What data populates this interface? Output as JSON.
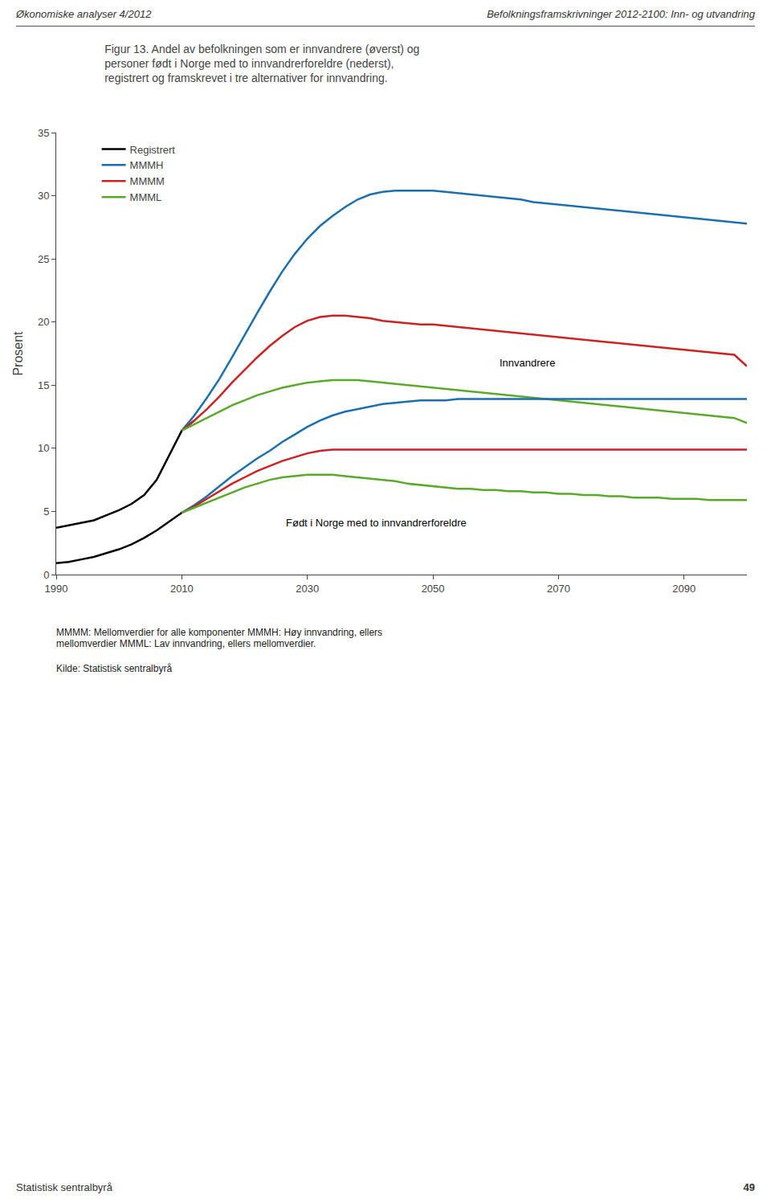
{
  "chart_data": {
    "type": "line",
    "title": "Figur 13. Andel av befolkningen som er innvandrere (øverst) og\npersoner født i Norge med to innvandrerforeldre (nederst),\nregistrert og framskrevet i tre alternativer for innvandring.",
    "header": [
      "Økonomiske analyser 4/2012",
      "Befolkningsframskrivninger 2012-2100: Inn- og utvandring"
    ],
    "footer": [
      "Statistisk sentralbyrå",
      "49"
    ],
    "footnote": "MMMM: Mellomverdier for alle komponenter MMMH: Høy innvandring, ellers\nmellomverdier MMML: Lav innvandring, ellers mellomverdier.",
    "source": "Kilde: Statistisk sentralbyrå",
    "y_label": "Prosent",
    "annotations": [
      "Innvandrere",
      "Født i Norge med to innvandrerforeldre"
    ],
    "x": [
      1990,
      1992,
      1994,
      1996,
      1998,
      2000,
      2002,
      2004,
      2006,
      2008,
      2010,
      2012,
      2014,
      2016,
      2018,
      2020,
      2022,
      2024,
      2026,
      2028,
      2030,
      2032,
      2034,
      2036,
      2038,
      2040,
      2042,
      2044,
      2046,
      2048,
      2050,
      2052,
      2054,
      2056,
      2058,
      2060,
      2062,
      2064,
      2066,
      2068,
      2070,
      2072,
      2074,
      2076,
      2078,
      2080,
      2082,
      2084,
      2086,
      2088,
      2090,
      2092,
      2094,
      2096,
      2098,
      2100
    ],
    "series": [
      {
        "name": "Registrert",
        "color": "#000000",
        "values": [
          3.7,
          3.9,
          4.1,
          4.3,
          4.7,
          5.1,
          5.6,
          6.3,
          7.5,
          9.5,
          11.4,
          12.2,
          null,
          null,
          null,
          null,
          null,
          null,
          null,
          null,
          null,
          null,
          null,
          null,
          null,
          null,
          null,
          null,
          null,
          null,
          null,
          null,
          null,
          null,
          null,
          null,
          null,
          null,
          null,
          null,
          null,
          null,
          null,
          null,
          null,
          null,
          null,
          null,
          null,
          null,
          null,
          null,
          null,
          null,
          null,
          null
        ]
      },
      {
        "name": "MMMH",
        "color": "#1a6faf",
        "values": [
          null,
          null,
          null,
          null,
          null,
          null,
          null,
          null,
          null,
          null,
          11.4,
          12.6,
          14.0,
          15.5,
          17.2,
          19.0,
          20.7,
          22.4,
          24.0,
          25.4,
          26.6,
          27.6,
          28.4,
          29.1,
          29.7,
          30.1,
          30.3,
          30.4,
          30.4,
          30.4,
          30.4,
          30.3,
          30.2,
          30.1,
          30.0,
          29.9,
          29.8,
          29.7,
          29.5,
          29.4,
          29.3,
          29.2,
          29.1,
          29.0,
          28.9,
          28.8,
          28.7,
          28.6,
          28.5,
          28.4,
          28.3,
          28.2,
          28.1,
          28.0,
          27.9,
          27.8
        ]
      },
      {
        "name": "MMMM",
        "color": "#cc2222",
        "values": [
          null,
          null,
          null,
          null,
          null,
          null,
          null,
          null,
          null,
          null,
          11.4,
          12.2,
          13.1,
          14.1,
          15.2,
          16.2,
          17.2,
          18.1,
          18.9,
          19.6,
          20.1,
          20.4,
          20.5,
          20.5,
          20.4,
          20.3,
          20.1,
          20.0,
          19.9,
          19.8,
          19.8,
          19.7,
          19.6,
          19.5,
          19.4,
          19.3,
          19.2,
          19.1,
          19.0,
          18.9,
          18.8,
          18.7,
          18.6,
          18.5,
          18.4,
          18.3,
          18.2,
          18.1,
          18.0,
          17.9,
          17.8,
          17.7,
          17.6,
          17.5,
          17.4,
          16.5
        ]
      },
      {
        "name": "MMML",
        "color": "#5aaa2a",
        "values": [
          null,
          null,
          null,
          null,
          null,
          null,
          null,
          null,
          null,
          null,
          11.4,
          11.9,
          12.4,
          12.9,
          13.4,
          13.8,
          14.2,
          14.5,
          14.8,
          15.0,
          15.2,
          15.3,
          15.4,
          15.4,
          15.4,
          15.3,
          15.2,
          15.1,
          15.0,
          14.9,
          14.8,
          14.7,
          14.6,
          14.5,
          14.4,
          14.3,
          14.2,
          14.1,
          14.0,
          13.9,
          13.8,
          13.7,
          13.6,
          13.5,
          13.4,
          13.3,
          13.2,
          13.1,
          13.0,
          12.9,
          12.8,
          12.7,
          12.6,
          12.5,
          12.4,
          12.0
        ]
      },
      {
        "name": "Registrert",
        "color": "#000000",
        "values": [
          0.9,
          1.0,
          1.2,
          1.4,
          1.7,
          2.0,
          2.4,
          2.9,
          3.5,
          4.2,
          4.9,
          5.4,
          null,
          null,
          null,
          null,
          null,
          null,
          null,
          null,
          null,
          null,
          null,
          null,
          null,
          null,
          null,
          null,
          null,
          null,
          null,
          null,
          null,
          null,
          null,
          null,
          null,
          null,
          null,
          null,
          null,
          null,
          null,
          null,
          null,
          null,
          null,
          null,
          null,
          null,
          null,
          null,
          null,
          null,
          null,
          null
        ]
      },
      {
        "name": "MMMH",
        "color": "#1a6faf",
        "values": [
          null,
          null,
          null,
          null,
          null,
          null,
          null,
          null,
          null,
          null,
          4.9,
          5.5,
          6.2,
          7.0,
          7.8,
          8.5,
          9.2,
          9.8,
          10.5,
          11.1,
          11.7,
          12.2,
          12.6,
          12.9,
          13.1,
          13.3,
          13.5,
          13.6,
          13.7,
          13.8,
          13.8,
          13.8,
          13.9,
          13.9,
          13.9,
          13.9,
          13.9,
          13.9,
          13.9,
          13.9,
          13.9,
          13.9,
          13.9,
          13.9,
          13.9,
          13.9,
          13.9,
          13.9,
          13.9,
          13.9,
          13.9,
          13.9,
          13.9,
          13.9,
          13.9,
          13.9
        ]
      },
      {
        "name": "MMMM",
        "color": "#cc2222",
        "values": [
          null,
          null,
          null,
          null,
          null,
          null,
          null,
          null,
          null,
          null,
          4.9,
          5.4,
          6.0,
          6.6,
          7.2,
          7.7,
          8.2,
          8.6,
          9.0,
          9.3,
          9.6,
          9.8,
          9.9,
          9.9,
          9.9,
          9.9,
          9.9,
          9.9,
          9.9,
          9.9,
          9.9,
          9.9,
          9.9,
          9.9,
          9.9,
          9.9,
          9.9,
          9.9,
          9.9,
          9.9,
          9.9,
          9.9,
          9.9,
          9.9,
          9.9,
          9.9,
          9.9,
          9.9,
          9.9,
          9.9,
          9.9,
          9.9,
          9.9,
          9.9,
          9.9,
          9.9
        ]
      },
      {
        "name": "MMML",
        "color": "#5aaa2a",
        "values": [
          null,
          null,
          null,
          null,
          null,
          null,
          null,
          null,
          null,
          null,
          4.9,
          5.3,
          5.7,
          6.1,
          6.5,
          6.9,
          7.2,
          7.5,
          7.7,
          7.8,
          7.9,
          7.9,
          7.9,
          7.8,
          7.7,
          7.6,
          7.5,
          7.4,
          7.2,
          7.1,
          7.0,
          6.9,
          6.8,
          6.8,
          6.7,
          6.7,
          6.6,
          6.6,
          6.5,
          6.5,
          6.4,
          6.4,
          6.3,
          6.3,
          6.2,
          6.2,
          6.1,
          6.1,
          6.1,
          6.0,
          6.0,
          6.0,
          5.9,
          5.9,
          5.9,
          5.9
        ]
      }
    ],
    "xlim": [
      1990,
      2100
    ],
    "xticks": [
      1990,
      2010,
      2030,
      2050,
      2070,
      2090
    ],
    "ylim": [
      0,
      35
    ],
    "yticks": [
      0,
      5,
      10,
      15,
      20,
      25,
      30,
      35
    ],
    "grid": false,
    "legend": "upper left"
  }
}
